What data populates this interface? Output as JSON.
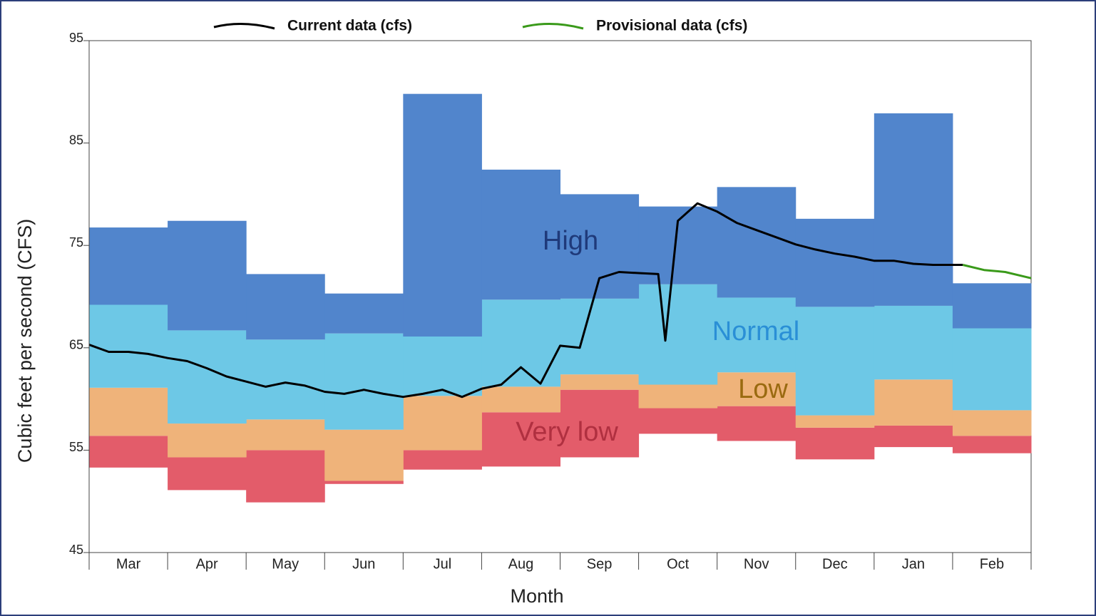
{
  "chart_data": {
    "type": "band",
    "y_label": "Cubic feet per second (CFS)",
    "x_label": "Month",
    "categories": [
      "Mar",
      "Apr",
      "May",
      "Jun",
      "Jul",
      "Aug",
      "Sep",
      "Oct",
      "Nov",
      "Dec",
      "Jan",
      "Feb"
    ],
    "ylim": [
      45,
      95
    ],
    "yticks": [
      45,
      55,
      65,
      75,
      85,
      95
    ],
    "bands": [
      {
        "name": "Very low",
        "color": "#e35c6a",
        "label_color": "#b03040",
        "values": [
          [
            53.3,
            56.4
          ],
          [
            51.1,
            54.3
          ],
          [
            49.9,
            55.0
          ],
          [
            51.7,
            52.0
          ],
          [
            53.1,
            55.0
          ],
          [
            53.4,
            58.7
          ],
          [
            54.3,
            60.9
          ],
          [
            56.6,
            59.1
          ],
          [
            55.9,
            59.3
          ],
          [
            54.1,
            57.2
          ],
          [
            55.3,
            57.4
          ],
          [
            54.7,
            56.4
          ]
        ]
      },
      {
        "name": "Low",
        "color": "#efb37a",
        "label_color": "#9a6a10",
        "values": [
          [
            56.4,
            61.1
          ],
          [
            54.3,
            57.6
          ],
          [
            55.0,
            58.0
          ],
          [
            52.0,
            57.0
          ],
          [
            55.0,
            60.3
          ],
          [
            58.7,
            61.2
          ],
          [
            60.9,
            62.4
          ],
          [
            59.1,
            61.4
          ],
          [
            59.3,
            62.6
          ],
          [
            57.2,
            58.4
          ],
          [
            57.4,
            61.9
          ],
          [
            56.4,
            58.9
          ]
        ]
      },
      {
        "name": "Normal",
        "color": "#6dc8e6",
        "label_color": "#2a8fd6",
        "values": [
          [
            61.1,
            69.2
          ],
          [
            57.6,
            66.7
          ],
          [
            58.0,
            65.8
          ],
          [
            57.0,
            66.4
          ],
          [
            60.3,
            66.1
          ],
          [
            61.2,
            69.7
          ],
          [
            62.4,
            69.8
          ],
          [
            61.4,
            71.2
          ],
          [
            62.6,
            69.9
          ],
          [
            58.4,
            69.0
          ],
          [
            61.9,
            69.1
          ],
          [
            58.9,
            66.9
          ]
        ]
      },
      {
        "name": "High",
        "color": "#5185cc",
        "label_color": "#1f3a7a",
        "values": [
          [
            69.2,
            76.75
          ],
          [
            66.7,
            77.4
          ],
          [
            65.8,
            72.2
          ],
          [
            66.4,
            70.3
          ],
          [
            66.1,
            89.8
          ],
          [
            69.7,
            82.4
          ],
          [
            69.8,
            80.0
          ],
          [
            71.2,
            78.8
          ],
          [
            69.9,
            80.7
          ],
          [
            69.0,
            77.6
          ],
          [
            69.1,
            87.9
          ],
          [
            66.9,
            71.3
          ]
        ]
      }
    ],
    "series": [
      {
        "name": "Current data (cfs)",
        "color": "#000000",
        "x": [
          0,
          0.25,
          0.5,
          0.75,
          1,
          1.25,
          1.5,
          1.75,
          2,
          2.25,
          2.5,
          2.75,
          3,
          3.25,
          3.5,
          3.75,
          4,
          4.25,
          4.5,
          4.75,
          5,
          5.25,
          5.5,
          5.75,
          6,
          6.25,
          6.5,
          6.75,
          7,
          7.25,
          7.34,
          7.5,
          7.75,
          8,
          8.25,
          8.5,
          8.75,
          9,
          9.25,
          9.5,
          9.75,
          10,
          10.25,
          10.5,
          10.75,
          11.13
        ],
        "values": [
          65.3,
          64.6,
          64.6,
          64.4,
          64.0,
          63.7,
          63.0,
          62.2,
          61.7,
          61.2,
          61.6,
          61.3,
          60.7,
          60.5,
          60.9,
          60.5,
          60.2,
          60.5,
          60.9,
          60.2,
          61.0,
          61.4,
          63.1,
          61.5,
          65.2,
          65.0,
          71.8,
          72.4,
          72.3,
          72.2,
          65.7,
          77.4,
          79.1,
          78.3,
          77.2,
          76.5,
          75.8,
          75.1,
          74.6,
          74.2,
          73.9,
          73.5,
          73.5,
          73.2,
          73.1,
          73.1
        ]
      },
      {
        "name": "Provisional data (cfs)",
        "color": "#3a9a1a",
        "x": [
          11.13,
          11.4,
          11.67,
          12
        ],
        "values": [
          73.1,
          72.6,
          72.4,
          71.8
        ]
      }
    ]
  }
}
